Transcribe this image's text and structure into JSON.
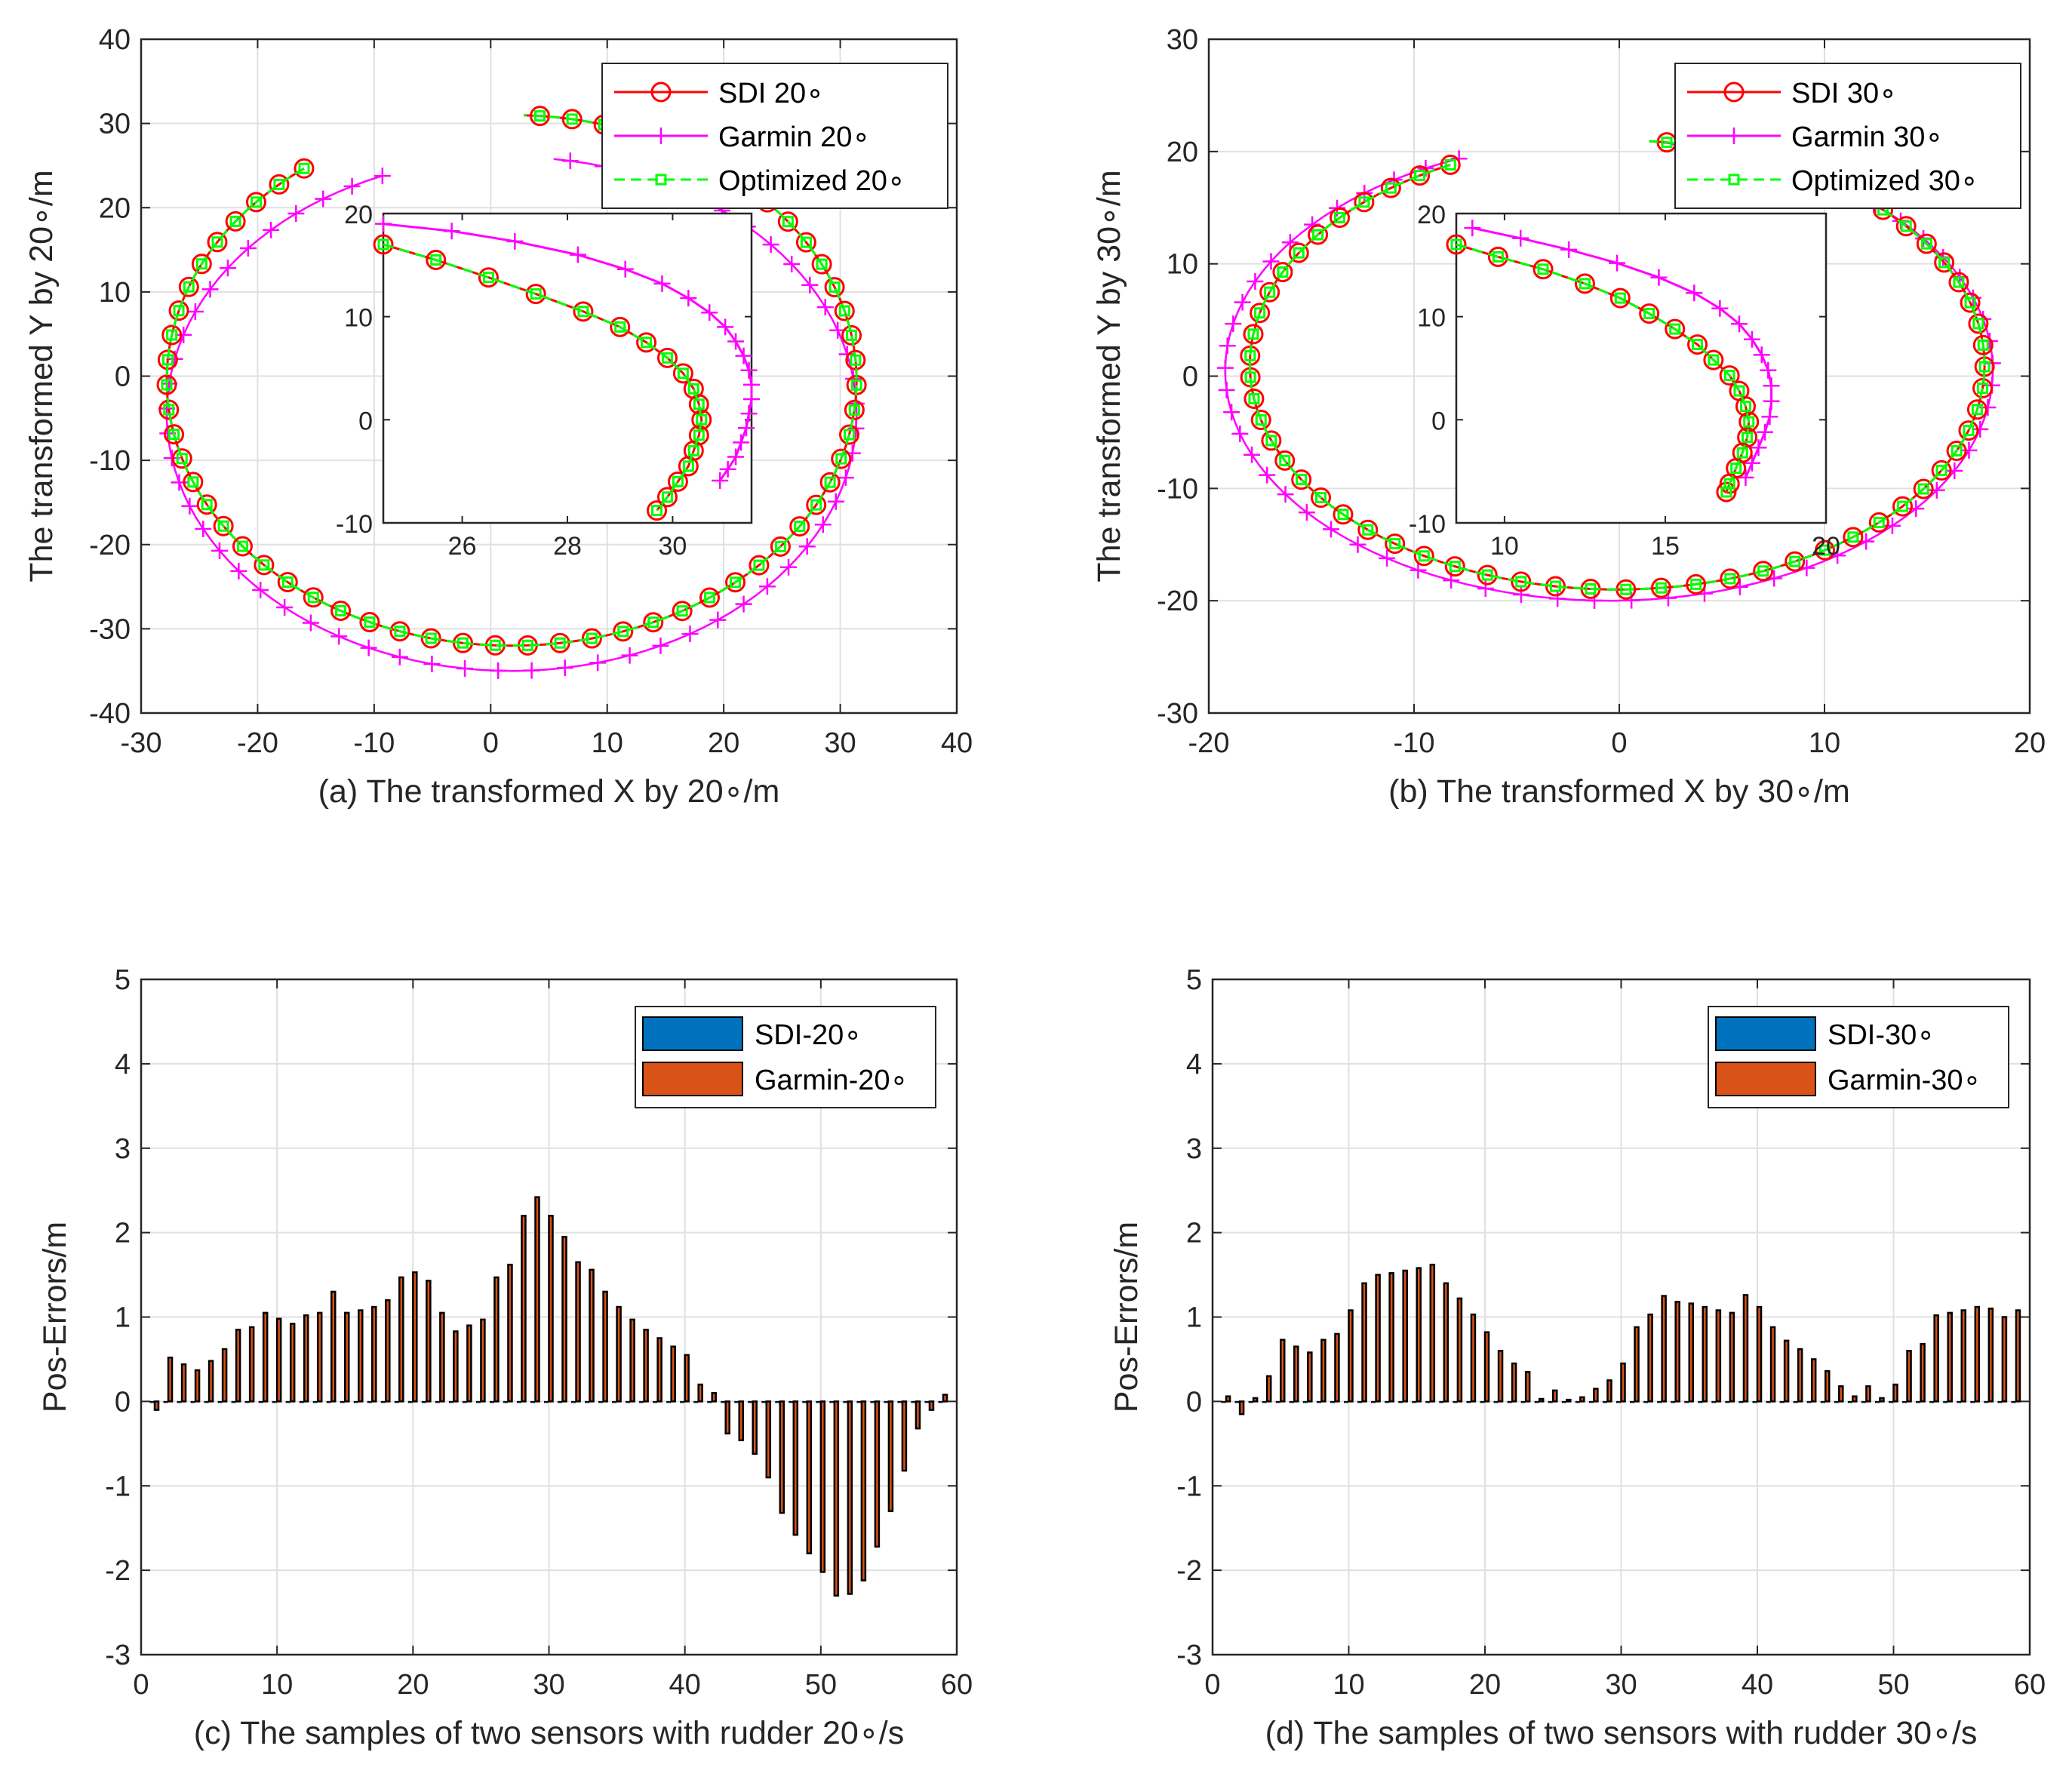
{
  "colors": {
    "sdi": "#ff0000",
    "garmin": "#ff00ff",
    "optimized": "#00ff00",
    "bar_sdi": "#0072bd",
    "bar_garmin": "#d95319",
    "grid": "#e0e0e0",
    "axis": "#262626"
  },
  "chart_data": [
    {
      "id": "a",
      "type": "line",
      "xlabel": "(a) The transformed X by 20∘/m",
      "ylabel": "The transformed Y by 20∘/m",
      "xlim": [
        -30,
        40
      ],
      "ylim": [
        -40,
        40
      ],
      "xticks": [
        "-30",
        "-20",
        "-10",
        "0",
        "10",
        "20",
        "30",
        "40"
      ],
      "yticks": [
        "-40",
        "-30",
        "-20",
        "-10",
        "0",
        "10",
        "20",
        "30",
        "40"
      ],
      "legend": [
        "SDI 20∘",
        "Garmin 20∘",
        "Optimized 20∘"
      ],
      "legend_location": "top-right",
      "trajectory_params": {
        "sdi": {
          "cx": 1.8,
          "cy": -0.5,
          "rx": 29.6,
          "ry": 31.5,
          "start": 127,
          "end": 448
        },
        "garmin": {
          "cx": 1.8,
          "cy": -4.5,
          "rx": 29.6,
          "ry": 30.5,
          "start": 112,
          "end": 443
        }
      },
      "inset": {
        "xlim": [
          24.5,
          31.5
        ],
        "ylim": [
          -10,
          20
        ],
        "xticks": [
          "26",
          "28",
          "30"
        ],
        "yticks": [
          "-10",
          "0",
          "10",
          "20"
        ],
        "sdi": [
          [
            24.5,
            17
          ],
          [
            25.5,
            15.5
          ],
          [
            26.5,
            13.8
          ],
          [
            27.4,
            12.2
          ],
          [
            28.3,
            10.5
          ],
          [
            29.0,
            9
          ],
          [
            29.5,
            7.5
          ],
          [
            29.9,
            6
          ],
          [
            30.2,
            4.5
          ],
          [
            30.4,
            3
          ],
          [
            30.5,
            1.5
          ],
          [
            30.55,
            0
          ],
          [
            30.5,
            -1.5
          ],
          [
            30.4,
            -3
          ],
          [
            30.3,
            -4.5
          ],
          [
            30.1,
            -6
          ],
          [
            29.9,
            -7.5
          ],
          [
            29.7,
            -8.8
          ]
        ],
        "garmin": [
          [
            24.5,
            19
          ],
          [
            25.8,
            18.3
          ],
          [
            27.0,
            17.3
          ],
          [
            28.2,
            16.0
          ],
          [
            29.1,
            14.6
          ],
          [
            29.8,
            13.2
          ],
          [
            30.3,
            11.8
          ],
          [
            30.7,
            10.4
          ],
          [
            31.0,
            9.0
          ],
          [
            31.2,
            7.6
          ],
          [
            31.35,
            6.2
          ],
          [
            31.45,
            4.8
          ],
          [
            31.5,
            3.4
          ],
          [
            31.5,
            2.0
          ],
          [
            31.45,
            0.6
          ],
          [
            31.4,
            -0.8
          ],
          [
            31.3,
            -2.2
          ],
          [
            31.2,
            -3.6
          ],
          [
            31.05,
            -4.8
          ],
          [
            30.9,
            -5.9
          ]
        ]
      }
    },
    {
      "id": "b",
      "type": "line",
      "xlabel": "(b) The transformed X by 30∘/m",
      "ylabel": "The transformed Y by 30∘/m",
      "xlim": [
        -20,
        20
      ],
      "ylim": [
        -30,
        30
      ],
      "xticks": [
        "-20",
        "-10",
        "0",
        "10",
        "20"
      ],
      "yticks": [
        "-30",
        "-20",
        "-10",
        "0",
        "10",
        "20",
        "30"
      ],
      "legend": [
        "SDI 30∘",
        "Garmin 30∘",
        "Optimized 30∘"
      ],
      "legend_location": "top-right",
      "trajectory_params": {
        "sdi": {
          "cx": -0.1,
          "cy": 1,
          "rx": 17.9,
          "ry": 20,
          "start": 117,
          "end": 445
        },
        "garmin": {
          "cx": -0.5,
          "cy": 0.5,
          "rx": 18.7,
          "ry": 20.5,
          "start": 113,
          "end": 442
        }
      },
      "inset": {
        "xlim": [
          8.5,
          20
        ],
        "ylim": [
          -10,
          20
        ],
        "xticks": [
          "10",
          "15",
          "20"
        ],
        "yticks": [
          "-10",
          "0",
          "10",
          "20"
        ],
        "sdi": [
          [
            8.5,
            17
          ],
          [
            9.8,
            15.8
          ],
          [
            11.2,
            14.6
          ],
          [
            12.5,
            13.2
          ],
          [
            13.6,
            11.8
          ],
          [
            14.5,
            10.3
          ],
          [
            15.3,
            8.8
          ],
          [
            16.0,
            7.3
          ],
          [
            16.5,
            5.8
          ],
          [
            17.0,
            4.3
          ],
          [
            17.3,
            2.8
          ],
          [
            17.5,
            1.3
          ],
          [
            17.6,
            -0.2
          ],
          [
            17.55,
            -1.7
          ],
          [
            17.4,
            -3.2
          ],
          [
            17.2,
            -4.7
          ],
          [
            17.0,
            -6.2
          ],
          [
            16.9,
            -7.0
          ]
        ],
        "garmin": [
          [
            9.0,
            18.6
          ],
          [
            10.5,
            17.6
          ],
          [
            12.0,
            16.5
          ],
          [
            13.5,
            15.2
          ],
          [
            14.8,
            13.8
          ],
          [
            15.9,
            12.3
          ],
          [
            16.7,
            10.8
          ],
          [
            17.3,
            9.3
          ],
          [
            17.7,
            7.8
          ],
          [
            18.0,
            6.3
          ],
          [
            18.2,
            4.8
          ],
          [
            18.3,
            3.3
          ],
          [
            18.3,
            1.8
          ],
          [
            18.25,
            0.3
          ],
          [
            18.1,
            -1.2
          ],
          [
            17.9,
            -2.7
          ],
          [
            17.7,
            -4.2
          ],
          [
            17.5,
            -5.6
          ]
        ]
      }
    },
    {
      "id": "c",
      "type": "bar",
      "xlabel": "(c) The samples of two sensors with rudder 20∘/s",
      "ylabel": "Pos-Errors/m",
      "xlim": [
        0,
        60
      ],
      "ylim": [
        -3,
        5
      ],
      "xticks": [
        "0",
        "10",
        "20",
        "30",
        "40",
        "50",
        "60"
      ],
      "yticks": [
        "-3",
        "-2",
        "-1",
        "0",
        "1",
        "2",
        "3",
        "4",
        "5"
      ],
      "legend": [
        "SDI-20∘",
        "Garmin-20∘"
      ],
      "legend_location": "top-right",
      "series": [
        {
          "name": "SDI-20∘",
          "values": [
            0,
            0,
            0,
            0,
            0,
            0,
            0,
            0,
            0,
            0,
            0,
            0,
            0,
            0,
            0,
            0,
            0,
            0,
            0,
            0,
            0,
            0,
            0,
            0,
            0,
            0,
            0,
            0,
            0,
            0,
            0,
            0,
            0,
            0,
            0,
            0,
            0,
            0,
            0,
            0,
            0,
            0,
            0,
            0,
            0,
            0,
            0,
            0,
            0,
            0,
            0,
            0,
            0,
            0,
            0,
            0,
            0,
            0,
            0
          ]
        },
        {
          "name": "Garmin-20∘",
          "values": [
            -0.1,
            0.52,
            0.44,
            0.37,
            0.48,
            0.62,
            0.85,
            0.88,
            1.05,
            0.98,
            0.92,
            1.02,
            1.05,
            1.3,
            1.05,
            1.08,
            1.12,
            1.2,
            1.47,
            1.53,
            1.43,
            1.05,
            0.83,
            0.9,
            0.97,
            1.47,
            1.62,
            2.2,
            2.42,
            2.2,
            1.95,
            1.65,
            1.56,
            1.3,
            1.12,
            0.97,
            0.85,
            0.75,
            0.65,
            0.55,
            0.2,
            0.1,
            -0.38,
            -0.46,
            -0.62,
            -0.9,
            -1.32,
            -1.58,
            -1.8,
            -2.02,
            -2.3,
            -2.28,
            -2.12,
            -1.72,
            -1.3,
            -0.82,
            -0.32,
            -0.1,
            0.08
          ]
        }
      ]
    },
    {
      "id": "d",
      "type": "bar",
      "xlabel": "(d) The samples of two sensors with rudder 30∘/s",
      "ylabel": "Pos-Errors/m",
      "xlim": [
        0,
        60
      ],
      "ylim": [
        -3,
        5
      ],
      "xticks": [
        "0",
        "10",
        "20",
        "30",
        "40",
        "50",
        "60"
      ],
      "yticks": [
        "-3",
        "-2",
        "-1",
        "0",
        "1",
        "2",
        "3",
        "4",
        "5"
      ],
      "legend": [
        "SDI-30∘",
        "Garmin-30∘"
      ],
      "legend_location": "top-right",
      "series": [
        {
          "name": "SDI-30∘",
          "values": [
            0,
            0,
            0,
            0,
            0,
            0,
            0,
            0,
            0,
            0,
            0,
            0,
            0,
            0,
            0,
            0,
            0,
            0,
            0,
            0,
            0,
            0,
            0,
            0,
            0,
            0,
            0,
            0,
            0,
            0,
            0,
            0,
            0,
            0,
            0,
            0,
            0,
            0,
            0,
            0,
            0,
            0,
            0,
            0,
            0,
            0,
            0,
            0,
            0,
            0,
            0,
            0,
            0,
            0,
            0,
            0,
            0,
            0,
            0
          ]
        },
        {
          "name": "Garmin-30∘",
          "values": [
            0.06,
            -0.15,
            0.04,
            0.3,
            0.73,
            0.65,
            0.58,
            0.73,
            0.8,
            1.08,
            1.4,
            1.5,
            1.52,
            1.55,
            1.58,
            1.62,
            1.4,
            1.22,
            1.03,
            0.82,
            0.6,
            0.45,
            0.35,
            0.03,
            0.13,
            0.02,
            0.05,
            0.15,
            0.25,
            0.45,
            0.88,
            1.03,
            1.25,
            1.18,
            1.16,
            1.12,
            1.08,
            1.05,
            1.26,
            1.12,
            0.88,
            0.72,
            0.62,
            0.5,
            0.36,
            0.18,
            0.06,
            0.18,
            0.04,
            0.2,
            0.6,
            0.68,
            1.02,
            1.05,
            1.08,
            1.12,
            1.1,
            1.0,
            1.08
          ]
        }
      ]
    }
  ]
}
